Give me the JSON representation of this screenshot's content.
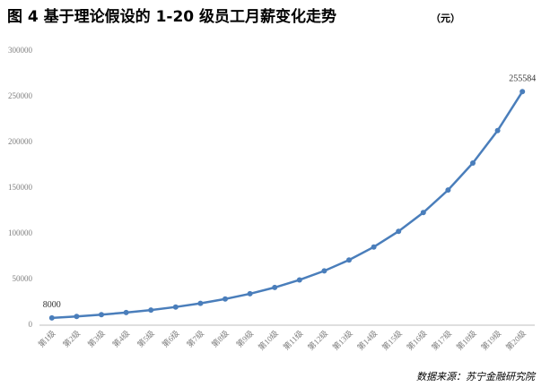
{
  "chart_data": {
    "type": "line",
    "title": "图 4  基于理论假设的 1-20 级员工月薪变化走势",
    "unit": "（元）",
    "source": "数据来源：苏宁金融研究院",
    "categories": [
      "第1级",
      "第2级",
      "第3级",
      "第4级",
      "第5级",
      "第6级",
      "第7级",
      "第8级",
      "第9级",
      "第10级",
      "第11级",
      "第12级",
      "第13级",
      "第14级",
      "第15级",
      "第16级",
      "第17级",
      "第18级",
      "第19级",
      "第20级"
    ],
    "values": [
      8000,
      9600,
      11520,
      13824,
      16589,
      19907,
      23888,
      28665,
      34399,
      41278,
      49534,
      59441,
      71329,
      85595,
      102714,
      123256,
      147907,
      177489,
      212987,
      255584
    ],
    "color": "#4a7ebb",
    "ylim": [
      0,
      300000
    ],
    "yticks": [
      0,
      50000,
      100000,
      150000,
      200000,
      250000,
      300000
    ],
    "grid": false
  }
}
